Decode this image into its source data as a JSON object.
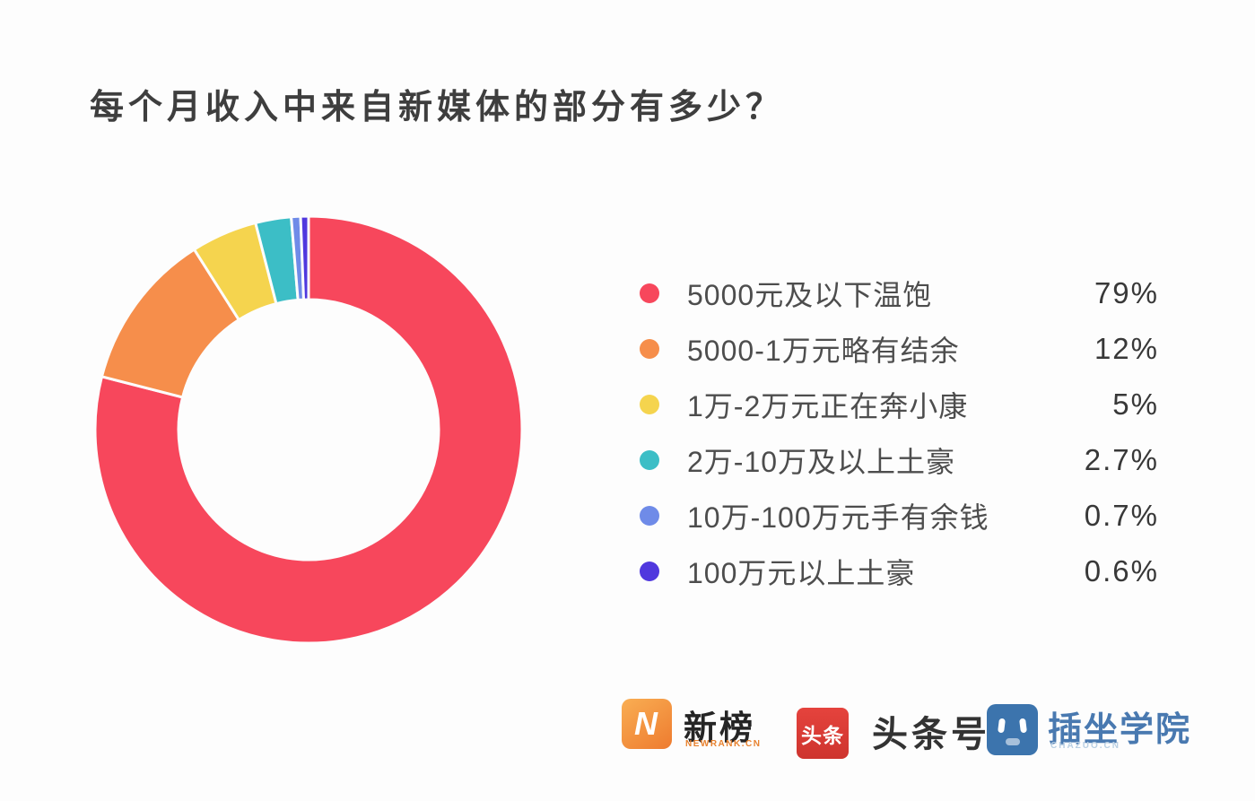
{
  "title": "每个月收入中来自新媒体的部分有多少？",
  "chart_data": {
    "type": "pie",
    "subtype": "donut",
    "title": "每个月收入中来自新媒体的部分有多少？",
    "labels": [
      "5000元及以下温饱",
      "5000-1万元略有结余",
      "1万-2万元正在奔小康",
      "2万-10万及以上土豪",
      "10万-100万元手有余钱",
      "100万元以上土豪"
    ],
    "values": [
      79,
      12,
      5,
      2.7,
      0.7,
      0.6
    ],
    "percent_labels": [
      "79%",
      "12%",
      "5%",
      "2.7%",
      "0.7%",
      "0.6%"
    ],
    "colors": [
      "#F7475C",
      "#F68E4B",
      "#F5D44E",
      "#3CBEC6",
      "#6F8BE8",
      "#5038DE"
    ],
    "legend_position": "right",
    "start_angle_deg": 0,
    "direction": "clockwise",
    "inner_radius_ratio": 0.61,
    "segment_gap_color": "#FDFDFD"
  },
  "footer": {
    "newrank": {
      "icon_letter": "N",
      "name": "新榜",
      "sub": "NEWRANK.CN",
      "brand_color": "#EE7B2F"
    },
    "toutiao": {
      "icon_text": "头条",
      "name": "头条号",
      "brand_color": "#DD3C35"
    },
    "chazuo": {
      "name": "插坐学院",
      "sub": "CHAZUO.CN",
      "brand_color": "#3C74AD"
    }
  }
}
